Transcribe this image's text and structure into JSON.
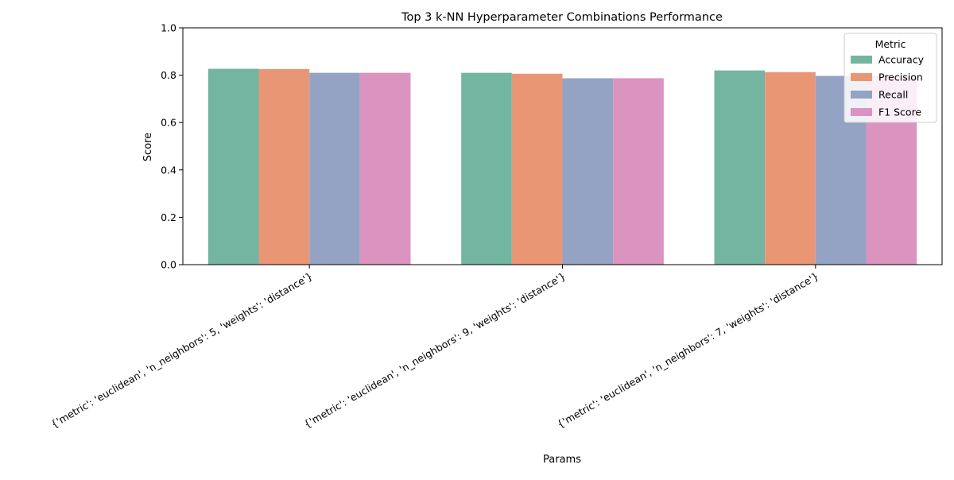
{
  "chart_data": {
    "type": "bar",
    "title": "Top 3 k-NN Hyperparameter Combinations Performance",
    "xlabel": "Params",
    "ylabel": "Score",
    "ylim": [
      0,
      1.0
    ],
    "yticks": [
      0.0,
      0.2,
      0.4,
      0.6,
      0.8,
      1.0
    ],
    "ytick_labels": [
      "0.0",
      "0.2",
      "0.4",
      "0.6",
      "0.8",
      "1.0"
    ],
    "grid": false,
    "categories": [
      "{'metric': 'euclidean', 'n_neighbors': 5, 'weights': 'distance'}",
      "{'metric': 'euclidean', 'n_neighbors': 9, 'weights': 'distance'}",
      "{'metric': 'euclidean', 'n_neighbors': 7, 'weights': 'distance'}"
    ],
    "legend": {
      "title": "Metric",
      "placement": "top-right"
    },
    "series": [
      {
        "name": "Accuracy",
        "color": "#73b5a0",
        "values": [
          0.827,
          0.81,
          0.82
        ]
      },
      {
        "name": "Precision",
        "color": "#e99675",
        "values": [
          0.826,
          0.806,
          0.813
        ]
      },
      {
        "name": "Recall",
        "color": "#94a3c3",
        "values": [
          0.81,
          0.787,
          0.797
        ]
      },
      {
        "name": "F1 Score",
        "color": "#db93bf",
        "values": [
          0.81,
          0.787,
          0.797
        ]
      }
    ]
  }
}
